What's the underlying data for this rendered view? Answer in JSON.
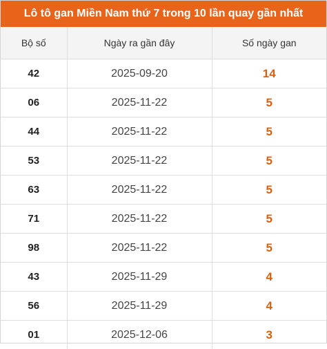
{
  "title": "Lô tô gan Miền Nam thứ 7 trong 10 lần quay gần nhất",
  "headers": {
    "col1": "Bộ số",
    "col2": "Ngày ra gần đây",
    "col3": "Số ngày gan"
  },
  "rows": [
    {
      "num": "42",
      "date": "2025-09-20",
      "gan": "14"
    },
    {
      "num": "06",
      "date": "2025-11-22",
      "gan": "5"
    },
    {
      "num": "44",
      "date": "2025-11-22",
      "gan": "5"
    },
    {
      "num": "53",
      "date": "2025-11-22",
      "gan": "5"
    },
    {
      "num": "63",
      "date": "2025-11-22",
      "gan": "5"
    },
    {
      "num": "71",
      "date": "2025-11-22",
      "gan": "5"
    },
    {
      "num": "98",
      "date": "2025-11-22",
      "gan": "5"
    },
    {
      "num": "43",
      "date": "2025-11-29",
      "gan": "4"
    },
    {
      "num": "56",
      "date": "2025-11-29",
      "gan": "4"
    },
    {
      "num": "01",
      "date": "2025-12-06",
      "gan": "3"
    }
  ],
  "colors": {
    "accent": "#e8641b",
    "gan_text": "#d9600f"
  }
}
